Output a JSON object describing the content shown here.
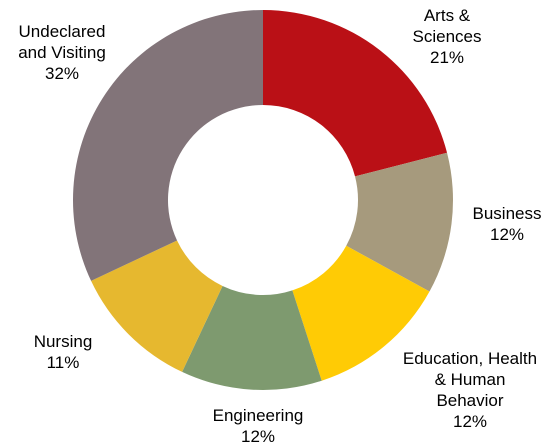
{
  "chart_data": {
    "type": "pie",
    "donut": true,
    "title": "",
    "series": [
      {
        "name": "Arts & Sciences",
        "label_lines": [
          "Arts &",
          "Sciences"
        ],
        "value": 21,
        "value_label": "21%",
        "color": "#BA1016"
      },
      {
        "name": "Business",
        "label_lines": [
          "Business"
        ],
        "value": 12,
        "value_label": "12%",
        "color": "#A69A7D"
      },
      {
        "name": "Education, Health & Human Behavior",
        "label_lines": [
          "Education, Health",
          "& Human",
          "Behavior"
        ],
        "value": 12,
        "value_label": "12%",
        "color": "#FFCB05"
      },
      {
        "name": "Engineering",
        "label_lines": [
          "Engineering"
        ],
        "value": 12,
        "value_label": "12%",
        "color": "#7E9A6F"
      },
      {
        "name": "Nursing",
        "label_lines": [
          "Nursing"
        ],
        "value": 11,
        "value_label": "11%",
        "color": "#E6B82F"
      },
      {
        "name": "Undeclared and Visiting",
        "label_lines": [
          "Undeclared",
          "and Visiting"
        ],
        "value": 32,
        "value_label": "32%",
        "color": "#827479"
      }
    ]
  }
}
